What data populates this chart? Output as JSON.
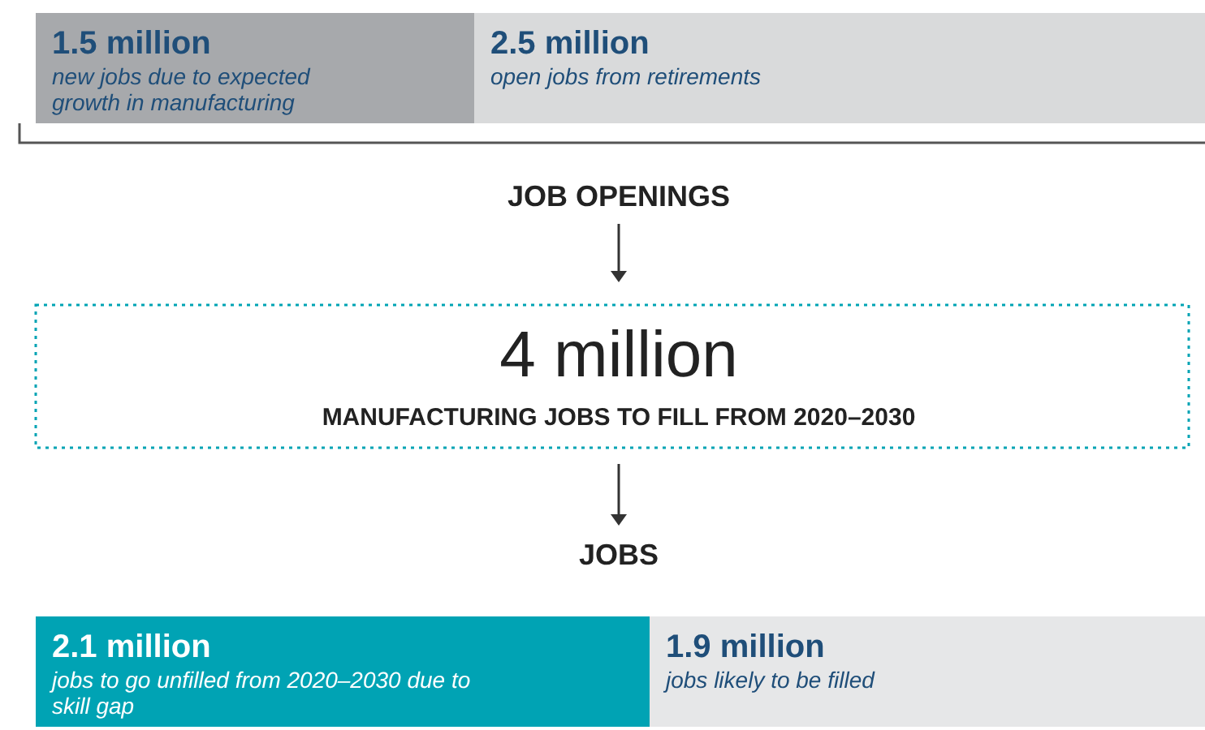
{
  "chart_data": [
    {
      "type": "bar",
      "orientation": "horizontal",
      "stacked": true,
      "categories": [
        null
      ],
      "series": [
        {
          "name": "new jobs due to expected growth in manufacturing",
          "color": "#a7a9ac",
          "values": [
            1.5
          ],
          "value_labels": [
            "1.5 million"
          ]
        },
        {
          "name": "open jobs from retirements",
          "color": "#d9dadb",
          "values": [
            2.5
          ],
          "value_labels": [
            "2.5 million"
          ]
        }
      ]
    },
    {
      "type": "other",
      "annotations": [
        "JOB OPENINGS",
        "4 million",
        "MANUFACTURING JOBS TO FILL FROM 2020–2030",
        "JOBS"
      ]
    },
    {
      "type": "bar",
      "orientation": "horizontal",
      "stacked": true,
      "categories": [
        null
      ],
      "series": [
        {
          "name": "jobs to go unfilled from 2020–2030 due to skill gap",
          "color": "#00a3b4",
          "values": [
            2.1
          ],
          "value_labels": [
            "2.1 million"
          ]
        },
        {
          "name": "jobs likely to be filled",
          "color": "#e6e7e8",
          "values": [
            1.9
          ],
          "value_labels": [
            "1.9 million"
          ]
        }
      ]
    }
  ]
}
